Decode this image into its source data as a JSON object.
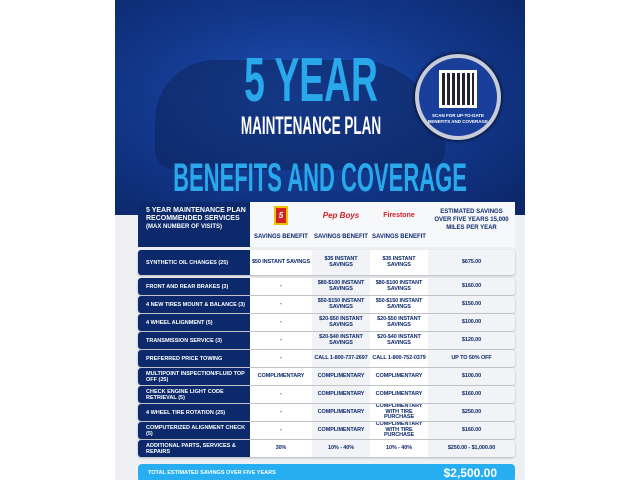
{
  "hero": {
    "title_big": "5 YEAR",
    "title_sub": "MAINTENANCE PLAN",
    "headline": "BENEFITS AND COVERAGE",
    "qr_caption": "SCAN FOR UP-TO-DATE BENEFITS AND COVERAGE"
  },
  "colors": {
    "navy": "#0c2a6b",
    "accent": "#29a9ec",
    "total_bar": "#27aef0"
  },
  "table": {
    "header": {
      "line1": "5 YEAR MAINTENANCE PLAN",
      "line2": "RECOMMENDED SERVICES",
      "line3": "(MAX NUMBER OF VISITS)",
      "providers": [
        {
          "logo": "TAKE 5",
          "label": "SAVINGS BENEFIT"
        },
        {
          "logo": "Pep Boys",
          "label": "SAVINGS BENEFIT"
        },
        {
          "logo": "Firestone",
          "label": "SAVINGS BENEFIT"
        }
      ],
      "estimate": "ESTIMATED SAVINGS OVER FIVE YEARS 15,000 MILES PER YEAR"
    },
    "rows": [
      [
        "SYNTHETIC OIL CHANGES (25)",
        "$50 INSTANT SAVINGS",
        "$35 INSTANT SAVINGS",
        "$35 INSTANT SAVINGS",
        "$675.00"
      ],
      [
        "FRONT AND REAR BRAKES (3)",
        "-",
        "$80-$100 INSTANT SAVINGS",
        "$80-$100 INSTANT SAVINGS",
        "$160.00"
      ],
      [
        "4 NEW TIRES MOUNT & BALANCE (3)",
        "-",
        "$50-$150 INSTANT SAVINGS",
        "$50-$150 INSTANT SAVINGS",
        "$150.00"
      ],
      [
        "4 WHEEL ALIGNMENT (5)",
        "-",
        "$20-$50 INSTANT SAVINGS",
        "$20-$50 INSTANT SAVINGS",
        "$100.00"
      ],
      [
        "TRANSMISSION SERVICE (3)",
        "-",
        "$20-$40 INSTANT SAVINGS",
        "$20-$40 INSTANT SAVINGS",
        "$120.00"
      ],
      [
        "PREFERRED PRICE TOWING",
        "-",
        "CALL 1-800-737-2697",
        "CALL 1-800-752-0379",
        "UP TO 50% OFF"
      ],
      [
        "MULTIPOINT INSPECTION/FLUID TOP OFF (25)",
        "COMPLIMENTARY",
        "COMPLIMENTARY",
        "COMPLIMENTARY",
        "$100.00"
      ],
      [
        "CHECK ENGINE LIGHT CODE RETRIEVAL (5)",
        "-",
        "COMPLIMENTARY",
        "COMPLIMENTARY",
        "$160.00"
      ],
      [
        "4 WHEEL TIRE ROTATION (25)",
        "-",
        "COMPLIMENTARY",
        "COMPLIMENTARY WITH TIRE PURCHASE",
        "$250.00"
      ],
      [
        "COMPUTERIZED ALIGNMENT CHECK (5)",
        "-",
        "COMPLIMENTARY",
        "COMPLIMENTARY WITH TIRE PURCHASE",
        "$160.00"
      ],
      [
        "ADDITIONAL PARTS, SERVICES & REPAIRS",
        "30%",
        "10% - 40%",
        "10% - 40%",
        "$250.00 - $1,000.00"
      ]
    ],
    "total": {
      "label": "TOTAL ESTIMATED SAVINGS OVER FIVE YEARS",
      "value": "$2,500.00"
    }
  }
}
